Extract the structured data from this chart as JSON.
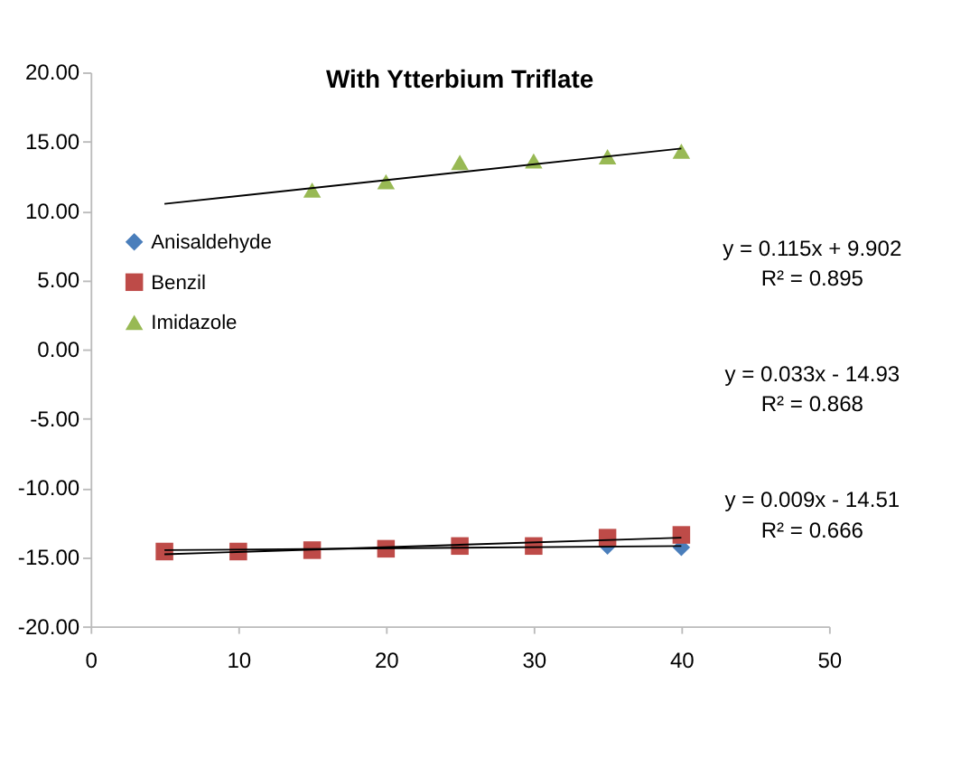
{
  "chart_data": {
    "type": "scatter",
    "title": "With Ytterbium Triflate",
    "x": [
      5,
      10,
      15,
      20,
      25,
      30,
      35,
      40
    ],
    "series": [
      {
        "name": "Anisaldehyde",
        "color": "#4a7ebb",
        "marker": "diamond",
        "values": [
          null,
          null,
          null,
          null,
          null,
          null,
          -14.2,
          -14.3
        ]
      },
      {
        "name": "Benzil",
        "color": "#be4b48",
        "marker": "square",
        "values": [
          -14.6,
          -14.6,
          -14.5,
          -14.4,
          -14.2,
          -14.2,
          -13.6,
          -13.4
        ]
      },
      {
        "name": "Imidazole",
        "color": "#98b954",
        "marker": "triangle",
        "x": [
          15,
          20,
          25,
          30,
          35,
          40
        ],
        "values": [
          11.5,
          12.1,
          13.5,
          13.6,
          13.9,
          14.3
        ]
      },
      {
        "type": "line",
        "color": "#000000",
        "x": [
          5,
          40
        ],
        "values": [
          10.5,
          14.5
        ]
      },
      {
        "type": "line",
        "color": "#000000",
        "x": [
          5,
          40
        ],
        "values": [
          -14.8,
          -13.6
        ]
      },
      {
        "type": "line",
        "color": "#000000",
        "x": [
          5,
          40
        ],
        "values": [
          -14.5,
          -14.2
        ]
      }
    ],
    "xlim": [
      0,
      50
    ],
    "xticks": [
      0,
      10,
      20,
      30,
      40,
      50
    ],
    "ylim": [
      -20,
      20
    ],
    "yticks": [
      {
        "value": -20,
        "label": "-20.00"
      },
      {
        "value": -15,
        "label": "-15.00"
      },
      {
        "value": -10,
        "label": "-10.00"
      },
      {
        "value": -5,
        "label": "-5.00"
      },
      {
        "value": 0,
        "label": "0.00"
      },
      {
        "value": 5,
        "label": "5.00"
      },
      {
        "value": 10,
        "label": "10.00"
      },
      {
        "value": 15,
        "label": "15.00"
      },
      {
        "value": 20,
        "label": "20.00"
      }
    ],
    "grid": false,
    "legend": "left",
    "annotations": [
      "y = 0.115x + 9.902",
      "R² = 0.895",
      "y = 0.033x - 14.93",
      "R² = 0.868",
      "y = 0.009x - 14.51",
      "R² = 0.666"
    ]
  }
}
